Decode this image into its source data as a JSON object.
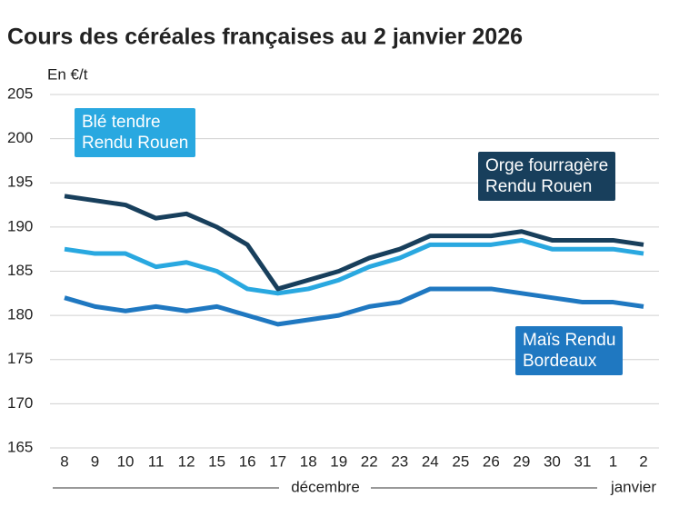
{
  "chart_data": {
    "type": "line",
    "title": "Cours des céréales françaises au 2 janvier 2026",
    "y_label": "En €/t",
    "categories": [
      "8",
      "9",
      "10",
      "11",
      "12",
      "15",
      "16",
      "17",
      "18",
      "19",
      "22",
      "23",
      "24",
      "25",
      "26",
      "29",
      "30",
      "31",
      "1",
      "2"
    ],
    "month_labels": [
      "décembre",
      "janvier"
    ],
    "series": [
      {
        "name": "Blé tendre\nRendu Rouen",
        "color": "#29a8e0",
        "values": [
          187.5,
          187,
          187,
          185.5,
          186,
          185,
          183,
          182.5,
          183,
          184,
          185.5,
          186.5,
          188,
          188,
          188,
          188.5,
          187.5,
          187.5,
          187.5,
          187
        ]
      },
      {
        "name": "Orge fourragère\nRendu Rouen",
        "color": "#183f5c",
        "values": [
          193.5,
          193,
          192.5,
          191,
          191.5,
          190,
          188,
          183,
          184,
          185,
          186.5,
          187.5,
          189,
          189,
          189,
          189.5,
          188.5,
          188.5,
          188.5,
          188
        ]
      },
      {
        "name": "Maïs Rendu\nBordeaux",
        "color": "#1f78c1",
        "values": [
          182,
          181,
          180.5,
          181,
          180.5,
          181,
          180,
          179,
          179.5,
          180,
          181,
          181.5,
          183,
          183,
          183,
          182.5,
          182,
          181.5,
          181.5,
          181
        ]
      }
    ],
    "ylim": [
      165,
      205
    ],
    "yticks": [
      165,
      170,
      175,
      180,
      185,
      190,
      195,
      200,
      205
    ],
    "grid": true
  }
}
